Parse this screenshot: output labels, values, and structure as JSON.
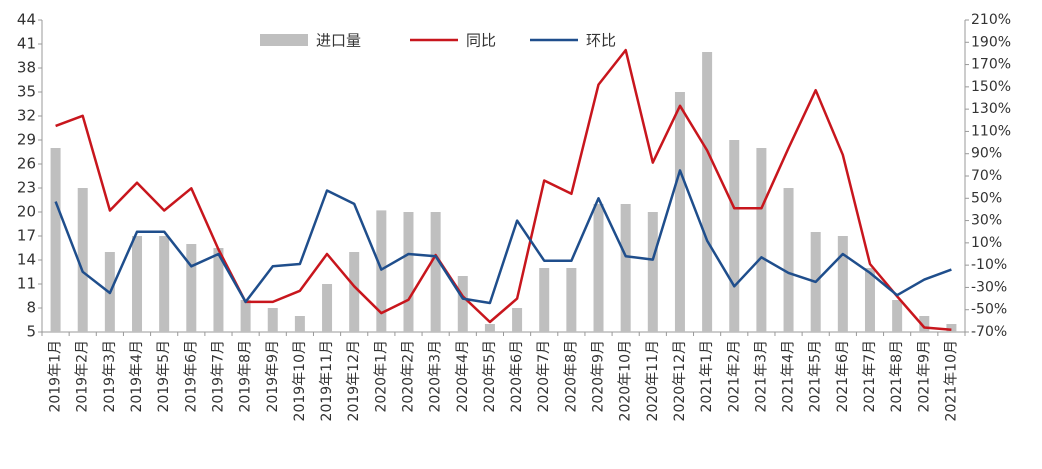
{
  "chart_data": {
    "type": "bar_line",
    "categories": [
      "2019年1月",
      "2019年2月",
      "2019年3月",
      "2019年4月",
      "2019年5月",
      "2019年6月",
      "2019年7月",
      "2019年8月",
      "2019年9月",
      "2019年10月",
      "2019年11月",
      "2019年12月",
      "2020年1月",
      "2020年2月",
      "2020年3月",
      "2020年4月",
      "2020年5月",
      "2020年6月",
      "2020年7月",
      "2020年8月",
      "2020年9月",
      "2020年10月",
      "2020年11月",
      "2020年12月",
      "2021年1月",
      "2021年2月",
      "2021年3月",
      "2021年4月",
      "2021年5月",
      "2021年6月",
      "2021年7月",
      "2021年8月",
      "2021年9月",
      "2021年10月"
    ],
    "series": [
      {
        "name": "进口量",
        "type": "bar",
        "color": "#bfbfbf",
        "values": [
          28,
          23,
          15,
          17,
          17,
          16,
          15.5,
          9,
          8,
          7,
          11,
          15,
          20.2,
          20,
          20,
          12,
          6,
          8,
          13,
          13,
          21,
          21,
          20,
          35,
          40,
          29,
          28,
          23,
          17.5,
          17,
          13,
          9,
          7,
          6
        ]
      },
      {
        "name": "同比",
        "type": "line",
        "axis": "y2",
        "color": "#c8161d",
        "values": [
          115,
          124,
          39,
          64,
          39,
          59,
          4,
          -43,
          -43,
          -33,
          0,
          -29,
          -53,
          -41,
          -1,
          -38,
          -61,
          -40,
          66,
          54,
          152,
          183,
          82,
          133,
          93,
          41,
          41,
          95,
          147,
          89,
          -9,
          -38,
          -66,
          -68
        ]
      },
      {
        "name": "环比",
        "type": "line",
        "axis": "y2",
        "color": "#1f4e8c",
        "values": [
          47,
          -16,
          -35,
          20,
          20,
          -11,
          0,
          -43,
          -11,
          -9,
          57,
          45,
          -14,
          0,
          -2,
          -40,
          -44,
          30,
          -6,
          -6,
          50,
          -2,
          -5,
          75,
          12,
          -29,
          -3,
          -17,
          -25,
          0,
          -17,
          -37,
          -23,
          -14
        ]
      }
    ],
    "ylim": [
      5,
      44
    ],
    "yticks": [
      5,
      8,
      11,
      14,
      17,
      20,
      23,
      26,
      29,
      32,
      35,
      38,
      41,
      44
    ],
    "y2lim": [
      -70,
      210
    ],
    "y2ticks": [
      {
        "value": -70,
        "label": "-70%"
      },
      {
        "value": -50,
        "label": "-50%"
      },
      {
        "value": -30,
        "label": "-30%"
      },
      {
        "value": -10,
        "label": "-10%"
      },
      {
        "value": 10,
        "label": "10%"
      },
      {
        "value": 30,
        "label": "30%"
      },
      {
        "value": 50,
        "label": "50%"
      },
      {
        "value": 70,
        "label": "70%"
      },
      {
        "value": 90,
        "label": "90%"
      },
      {
        "value": 110,
        "label": "110%"
      },
      {
        "value": 130,
        "label": "130%"
      },
      {
        "value": 150,
        "label": "150%"
      },
      {
        "value": 170,
        "label": "170%"
      },
      {
        "value": 190,
        "label": "190%"
      },
      {
        "value": 210,
        "label": "210%"
      }
    ],
    "grid": false,
    "legend": "top"
  }
}
